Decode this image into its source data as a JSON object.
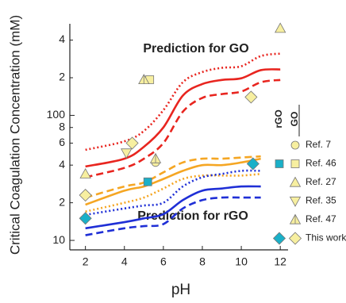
{
  "chart_data": {
    "type": "scatter",
    "x_label": "pH",
    "y_label": "Critical Coagulation Concentration (mM)",
    "annotations": [
      {
        "text": "Prediction for GO",
        "color": "#e8251f"
      },
      {
        "text": "Prediction for rGO",
        "color": "#1c1c8c"
      }
    ],
    "xlim": [
      1.2,
      12.4
    ],
    "xticks": [
      2,
      4,
      6,
      8,
      10,
      12
    ],
    "ylim": [
      8.4,
      540
    ],
    "log_y": true,
    "yticks": [
      10,
      {
        "value": 20,
        "label": "2"
      },
      {
        "value": 40,
        "label": "4"
      },
      {
        "value": 60,
        "label": "6"
      },
      {
        "value": 80,
        "label": "8"
      },
      100,
      {
        "value": 200,
        "label": "2"
      },
      {
        "value": 400,
        "label": "4"
      }
    ],
    "curves": [
      {
        "color": "#e8251f",
        "dash": "solid",
        "x": [
          2,
          4,
          5,
          6,
          7,
          8,
          9,
          10,
          11,
          12
        ],
        "y": [
          39,
          45,
          56,
          80,
          144,
          178,
          192,
          198,
          230,
          233
        ]
      },
      {
        "color": "#e8251f",
        "dash": "dotted",
        "x": [
          2,
          4,
          5,
          6,
          7,
          8,
          9,
          10,
          11,
          12
        ],
        "y": [
          53,
          62,
          75,
          110,
          184,
          222,
          240,
          247,
          298,
          312
        ]
      },
      {
        "color": "#e8251f",
        "dash": "dashed",
        "x": [
          2,
          4,
          5,
          6,
          7,
          8,
          9,
          10,
          11,
          12
        ],
        "y": [
          32,
          38,
          45,
          60,
          107,
          138,
          148,
          155,
          184,
          192
        ]
      },
      {
        "color": "#f5a623",
        "dash": "solid",
        "x": [
          2,
          4,
          5,
          6,
          7,
          8,
          9,
          10,
          11
        ],
        "y": [
          19.3,
          25,
          27,
          31,
          36,
          40,
          40,
          42,
          45
        ]
      },
      {
        "color": "#f5a623",
        "dash": "dashed",
        "x": [
          2,
          4,
          5,
          6,
          7,
          8,
          9,
          10,
          11
        ],
        "y": [
          22,
          27,
          29,
          35,
          42,
          45,
          45,
          46,
          47
        ]
      },
      {
        "color": "#f5a623",
        "dash": "dotted",
        "x": [
          2,
          4,
          5,
          6,
          7,
          8,
          9,
          10,
          11
        ],
        "y": [
          17,
          20,
          22,
          26,
          31,
          33,
          33,
          33,
          34
        ]
      },
      {
        "color": "#1f2fd6",
        "dash": "solid",
        "x": [
          2,
          4,
          5,
          6,
          7,
          8,
          9,
          10,
          11
        ],
        "y": [
          12.5,
          14,
          15,
          16.2,
          21,
          25,
          26,
          27,
          27
        ]
      },
      {
        "color": "#1f2fd6",
        "dash": "dotted",
        "x": [
          2,
          4,
          5,
          6,
          7,
          8,
          9,
          10,
          11
        ],
        "y": [
          16,
          18,
          19,
          20,
          27,
          32,
          34,
          36,
          36
        ]
      },
      {
        "color": "#1f2fd6",
        "dash": "dashed",
        "x": [
          2,
          4,
          5,
          6,
          7,
          8,
          9,
          10,
          11
        ],
        "y": [
          11,
          12.5,
          13,
          13.5,
          18,
          21,
          22,
          22,
          22
        ]
      }
    ],
    "legend_headers": [
      "rGO",
      "GO"
    ],
    "rgo_color": "#1ab0c8",
    "go_color": "#f7efa0",
    "series": [
      {
        "name": "Ref. 7",
        "marker": "circle",
        "go": {
          "x": [
            5.6
          ],
          "y": [
            42
          ]
        }
      },
      {
        "name": "Ref. 46",
        "marker": "square",
        "rgo": {
          "x": [
            5.2
          ],
          "y": [
            29.4
          ]
        },
        "go": {
          "x": [
            5.3
          ],
          "y": [
            193
          ]
        }
      },
      {
        "name": "Ref. 27",
        "marker": "triangle-up",
        "go": {
          "x": [
            12,
            2
          ],
          "y": [
            497,
            34
          ]
        }
      },
      {
        "name": "Ref. 35",
        "marker": "triangle-down",
        "go": {
          "x": [
            4.1
          ],
          "y": [
            50
          ]
        }
      },
      {
        "name": "Ref. 47",
        "marker": "half-triangle",
        "go": {
          "x": [
            5,
            5.6
          ],
          "y": [
            193,
            45
          ]
        }
      },
      {
        "name": "This work",
        "marker": "diamond",
        "rgo": {
          "x": [
            2,
            10.6
          ],
          "y": [
            15,
            41
          ]
        },
        "go": {
          "x": [
            4.4,
            2,
            10.5
          ],
          "y": [
            60,
            23,
            140
          ]
        }
      }
    ]
  }
}
